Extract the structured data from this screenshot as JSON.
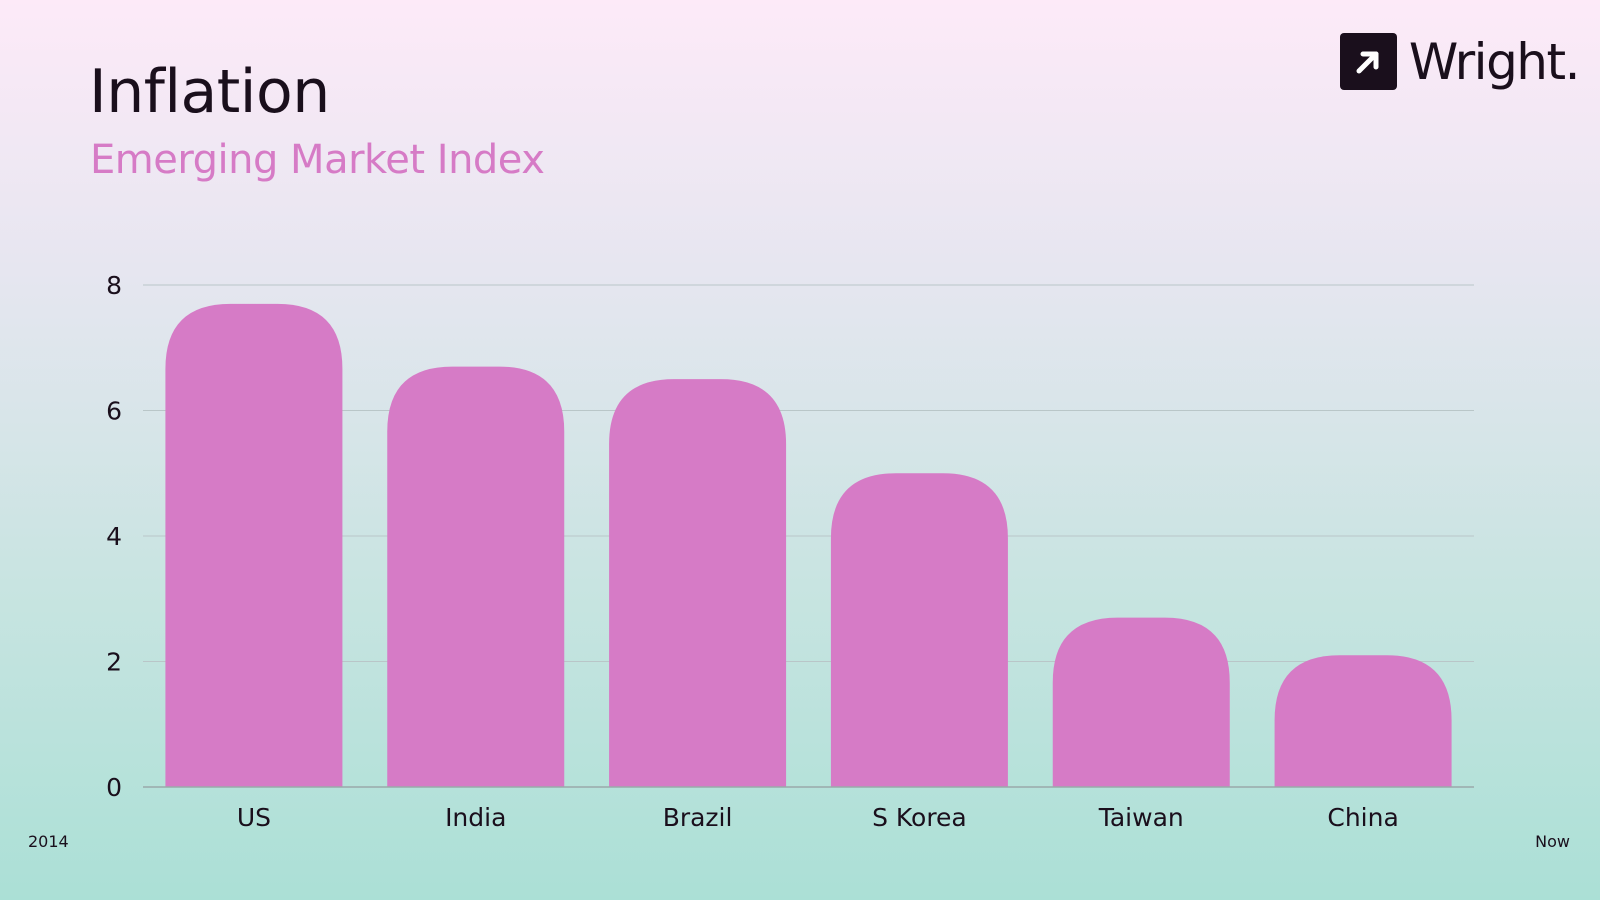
{
  "header": {
    "title": "Inflation",
    "subtitle": "Emerging Market Index"
  },
  "logo": {
    "icon": "arrow-up-right-icon",
    "text": "Wright."
  },
  "footer": {
    "left": "2014",
    "right": "Now"
  },
  "colors": {
    "bar": "#d67bc6",
    "subtitle": "#d67bc6",
    "text": "#1a0f1c",
    "grid": "#b9c6c8"
  },
  "chart_data": {
    "type": "bar",
    "categories": [
      "US",
      "India",
      "Brazil",
      "S Korea",
      "Taiwan",
      "China"
    ],
    "values": [
      7.7,
      6.7,
      6.5,
      5.0,
      2.7,
      2.1
    ],
    "yticks": [
      "0",
      "2",
      "4",
      "6",
      "8"
    ],
    "ylim": [
      0,
      8
    ],
    "grid": true,
    "legend": "none"
  }
}
